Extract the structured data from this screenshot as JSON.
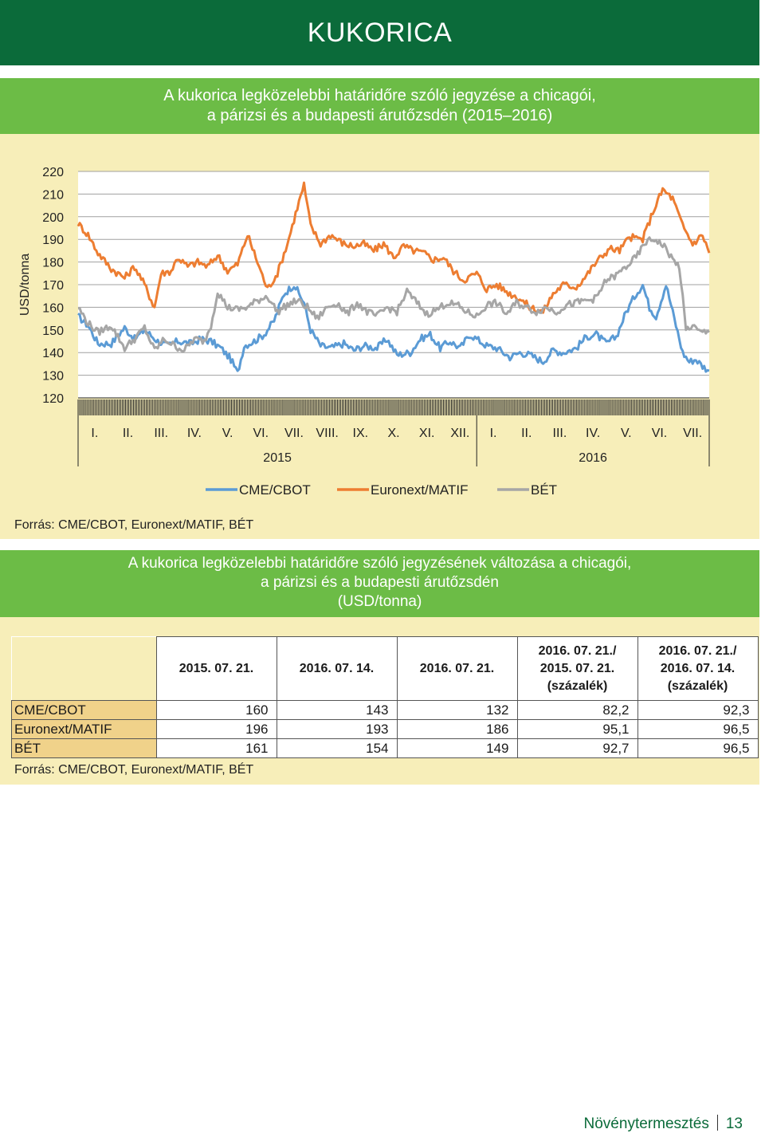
{
  "header": {
    "title": "KUKORICA"
  },
  "chart_section": {
    "title_line1": "A kukorica legközelebbi határidőre szóló jegyzése a chicagói,",
    "title_line2": "a párizsi és a budapesti árutőzsdén (2015–2016)",
    "source": "Forrás: CME/CBOT, Euronext/MATIF, BÉT"
  },
  "chart_data": {
    "type": "line",
    "ylabel": "USD/tonna",
    "ylim": [
      120,
      220
    ],
    "yticks": [
      120,
      130,
      140,
      150,
      160,
      170,
      180,
      190,
      200,
      210,
      220
    ],
    "month_labels": [
      "I.",
      "II.",
      "III.",
      "IV.",
      "V.",
      "VI.",
      "VII.",
      "VIII.",
      "IX.",
      "X.",
      "XI.",
      "XII.",
      "I.",
      "II.",
      "III.",
      "IV.",
      "V.",
      "VI.",
      "VII."
    ],
    "year_labels": [
      "2015",
      "2016"
    ],
    "legend_position": "bottom",
    "series": [
      {
        "name": "CME/CBOT",
        "color": "#5b9bd5",
        "points": [
          [
            0,
            156
          ],
          [
            0.3,
            152
          ],
          [
            0.6,
            144
          ],
          [
            1,
            144
          ],
          [
            1.4,
            151
          ],
          [
            1.7,
            146
          ],
          [
            2,
            150
          ],
          [
            2.4,
            145
          ],
          [
            2.7,
            143
          ],
          [
            3,
            145
          ],
          [
            3.4,
            144
          ],
          [
            3.7,
            146
          ],
          [
            4,
            145
          ],
          [
            4.3,
            142
          ],
          [
            4.6,
            137
          ],
          [
            4.8,
            131
          ],
          [
            5,
            143
          ],
          [
            5.3,
            145
          ],
          [
            5.6,
            148
          ],
          [
            5.9,
            154
          ],
          [
            6.2,
            166
          ],
          [
            6.5,
            170
          ],
          [
            6.8,
            162
          ],
          [
            7,
            150
          ],
          [
            7.3,
            143
          ],
          [
            7.6,
            142
          ],
          [
            8,
            144
          ],
          [
            8.3,
            141
          ],
          [
            8.6,
            143
          ],
          [
            9,
            142
          ],
          [
            9.3,
            146
          ],
          [
            9.6,
            139
          ],
          [
            10,
            140
          ],
          [
            10.3,
            146
          ],
          [
            10.6,
            148
          ],
          [
            10.9,
            142
          ],
          [
            11.2,
            145
          ],
          [
            11.5,
            142
          ],
          [
            11.8,
            148
          ],
          [
            12,
            146
          ],
          [
            12.3,
            143
          ],
          [
            12.6,
            142
          ],
          [
            13,
            138
          ],
          [
            13.3,
            140
          ],
          [
            13.6,
            139
          ],
          [
            14,
            136
          ],
          [
            14.3,
            141
          ],
          [
            14.6,
            140
          ],
          [
            15,
            142
          ],
          [
            15.3,
            147
          ],
          [
            15.6,
            148
          ],
          [
            15.9,
            144
          ],
          [
            16.2,
            147
          ],
          [
            16.5,
            158
          ],
          [
            16.8,
            166
          ],
          [
            17,
            170
          ],
          [
            17.2,
            160
          ],
          [
            17.4,
            156
          ],
          [
            17.7,
            170
          ],
          [
            18,
            152
          ],
          [
            18.2,
            140
          ],
          [
            18.4,
            136
          ],
          [
            18.6,
            137
          ],
          [
            18.8,
            134
          ],
          [
            19,
            132
          ]
        ]
      },
      {
        "name": "Euronext/MATIF",
        "color": "#ed7d31",
        "points": [
          [
            0,
            197
          ],
          [
            0.3,
            192
          ],
          [
            0.6,
            184
          ],
          [
            1,
            177
          ],
          [
            1.4,
            173
          ],
          [
            1.7,
            178
          ],
          [
            2,
            170
          ],
          [
            2.3,
            160
          ],
          [
            2.5,
            175
          ],
          [
            2.8,
            176
          ],
          [
            3,
            182
          ],
          [
            3.3,
            178
          ],
          [
            3.6,
            180
          ],
          [
            3.9,
            178
          ],
          [
            4.2,
            183
          ],
          [
            4.5,
            176
          ],
          [
            4.8,
            179
          ],
          [
            5.1,
            192
          ],
          [
            5.4,
            180
          ],
          [
            5.7,
            168
          ],
          [
            6,
            175
          ],
          [
            6.3,
            188
          ],
          [
            6.6,
            204
          ],
          [
            6.8,
            214
          ],
          [
            7,
            196
          ],
          [
            7.3,
            188
          ],
          [
            7.6,
            192
          ],
          [
            8,
            188
          ],
          [
            8.3,
            187
          ],
          [
            8.6,
            188
          ],
          [
            8.9,
            185
          ],
          [
            9.2,
            188
          ],
          [
            9.5,
            182
          ],
          [
            9.8,
            187
          ],
          [
            10.1,
            185
          ],
          [
            10.4,
            184
          ],
          [
            10.7,
            181
          ],
          [
            11,
            182
          ],
          [
            11.3,
            176
          ],
          [
            11.6,
            172
          ],
          [
            12,
            175
          ],
          [
            12.3,
            168
          ],
          [
            12.6,
            170
          ],
          [
            13,
            166
          ],
          [
            13.3,
            164
          ],
          [
            13.6,
            160
          ],
          [
            14,
            158
          ],
          [
            14.3,
            166
          ],
          [
            14.6,
            170
          ],
          [
            15,
            169
          ],
          [
            15.3,
            174
          ],
          [
            15.6,
            180
          ],
          [
            16,
            186
          ],
          [
            16.3,
            185
          ],
          [
            16.6,
            191
          ],
          [
            17,
            190
          ],
          [
            17.3,
            202
          ],
          [
            17.6,
            212
          ],
          [
            17.9,
            208
          ],
          [
            18.2,
            196
          ],
          [
            18.5,
            188
          ],
          [
            18.8,
            192
          ],
          [
            19,
            184
          ]
        ]
      },
      {
        "name": "BÉT",
        "color": "#a6a6a6",
        "points": [
          [
            0,
            160
          ],
          [
            0.3,
            153
          ],
          [
            0.6,
            149
          ],
          [
            1,
            152
          ],
          [
            1.4,
            142
          ],
          [
            1.7,
            146
          ],
          [
            2,
            151
          ],
          [
            2.3,
            141
          ],
          [
            2.6,
            146
          ],
          [
            2.9,
            143
          ],
          [
            3.2,
            141
          ],
          [
            3.5,
            146
          ],
          [
            3.8,
            145
          ],
          [
            4,
            152
          ],
          [
            4.2,
            167
          ],
          [
            4.5,
            160
          ],
          [
            4.8,
            159
          ],
          [
            5.1,
            160
          ],
          [
            5.4,
            163
          ],
          [
            5.7,
            165
          ],
          [
            6,
            158
          ],
          [
            6.3,
            161
          ],
          [
            6.6,
            163
          ],
          [
            6.9,
            160
          ],
          [
            7.2,
            155
          ],
          [
            7.5,
            160
          ],
          [
            7.8,
            162
          ],
          [
            8.1,
            157
          ],
          [
            8.4,
            162
          ],
          [
            8.7,
            158
          ],
          [
            9,
            156
          ],
          [
            9.3,
            160
          ],
          [
            9.6,
            158
          ],
          [
            9.9,
            167
          ],
          [
            10.2,
            162
          ],
          [
            10.5,
            157
          ],
          [
            10.8,
            159
          ],
          [
            11.1,
            162
          ],
          [
            11.4,
            161
          ],
          [
            11.7,
            158
          ],
          [
            12,
            156
          ],
          [
            12.3,
            161
          ],
          [
            12.6,
            162
          ],
          [
            12.9,
            157
          ],
          [
            13.2,
            162
          ],
          [
            13.5,
            160
          ],
          [
            13.8,
            158
          ],
          [
            14.1,
            160
          ],
          [
            14.4,
            158
          ],
          [
            14.7,
            161
          ],
          [
            15,
            162
          ],
          [
            15.3,
            163
          ],
          [
            15.6,
            164
          ],
          [
            15.9,
            172
          ],
          [
            16.2,
            174
          ],
          [
            16.5,
            178
          ],
          [
            16.8,
            182
          ],
          [
            17.1,
            189
          ],
          [
            17.4,
            190
          ],
          [
            17.7,
            186
          ],
          [
            17.9,
            181
          ],
          [
            18.1,
            178
          ],
          [
            18.3,
            150
          ],
          [
            18.5,
            152
          ],
          [
            18.7,
            149
          ],
          [
            19,
            149
          ]
        ]
      }
    ]
  },
  "table_section": {
    "title_line1": "A kukorica legközelebbi határidőre szóló jegyzésének változása a chicagói,",
    "title_line2": "a párizsi és a budapesti árutőzsdén",
    "title_line3": "(USD/tonna)",
    "columns": [
      {
        "line1": "2015. 07. 21.",
        "line2": "",
        "line3": ""
      },
      {
        "line1": "2016. 07. 14.",
        "line2": "",
        "line3": ""
      },
      {
        "line1": "2016. 07. 21.",
        "line2": "",
        "line3": ""
      },
      {
        "line1": "2016. 07. 21./",
        "line2": "2015. 07. 21.",
        "line3": "(százalék)"
      },
      {
        "line1": "2016. 07. 21./",
        "line2": "2016. 07. 14.",
        "line3": "(százalék)"
      }
    ],
    "rows": [
      {
        "label": "CME/CBOT",
        "values": [
          "160",
          "143",
          "132",
          "82,2",
          "92,3"
        ]
      },
      {
        "label": "Euronext/MATIF",
        "values": [
          "196",
          "193",
          "186",
          "95,1",
          "96,5"
        ]
      },
      {
        "label": "BÉT",
        "values": [
          "161",
          "154",
          "149",
          "92,7",
          "96,5"
        ]
      }
    ],
    "source": "Forrás: CME/CBOT, Euronext/MATIF, BÉT"
  },
  "footer": {
    "section": "Növénytermesztés",
    "page": "13"
  }
}
